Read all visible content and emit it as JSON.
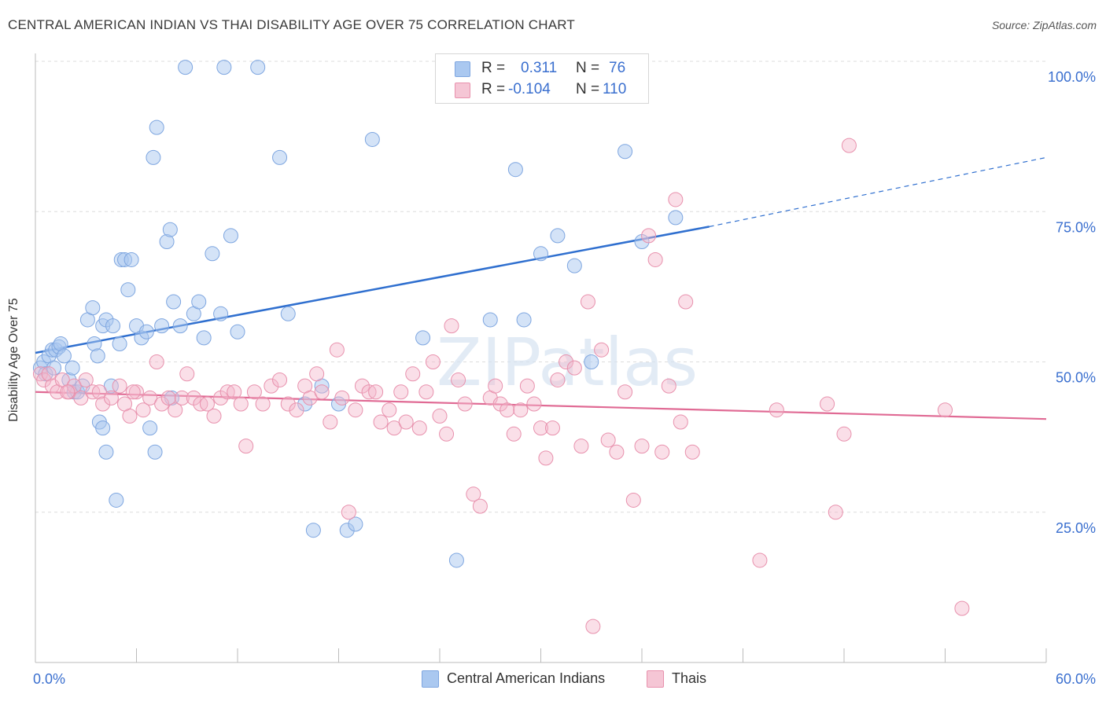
{
  "title": "CENTRAL AMERICAN INDIAN VS THAI DISABILITY AGE OVER 75 CORRELATION CHART",
  "source": "Source: ZipAtlas.com",
  "watermark": "ZIPatlas",
  "stats": [
    {
      "r_label": "R =",
      "r_value": "0.311",
      "n_label": "N =",
      "n_value": "76"
    },
    {
      "r_label": "R =",
      "r_value": "-0.104",
      "n_label": "N =",
      "n_value": "110"
    }
  ],
  "legend": [
    "Central American Indians",
    "Thais"
  ],
  "colors": {
    "blue_fill": "#aac8f0",
    "blue_stroke": "#7ea6e0",
    "blue_line": "#2f6fcf",
    "pink_fill": "#f5b8cb",
    "pink_stroke": "#e891ad",
    "pink_line": "#e06a94",
    "tick_label": "#3a6fcf",
    "grid": "#dcdcdc"
  },
  "chart_data": {
    "type": "scatter",
    "title": "CENTRAL AMERICAN INDIAN VS THAI DISABILITY AGE OVER 75 CORRELATION CHART",
    "xlabel": "",
    "ylabel": "Disability Age Over 75",
    "xlim": [
      0,
      60
    ],
    "ylim": [
      0,
      105
    ],
    "x_tick_labels": [
      "0.0%",
      "60.0%"
    ],
    "y_ticks": [
      25,
      50,
      75,
      100
    ],
    "y_tick_labels": [
      "25.0%",
      "50.0%",
      "75.0%",
      "100.0%"
    ],
    "grid": true,
    "series": [
      {
        "name": "Central American Indians",
        "trend": {
          "x0": 0,
          "y0": 51.5,
          "x1": 40,
          "y1": 72.5,
          "dash_to_x": 60,
          "dash_to_y": 84
        },
        "points": [
          [
            0.3,
            49
          ],
          [
            0.5,
            50
          ],
          [
            0.6,
            48
          ],
          [
            0.8,
            51
          ],
          [
            1,
            52
          ],
          [
            1.1,
            49
          ],
          [
            1.2,
            52
          ],
          [
            1.4,
            52.5
          ],
          [
            1.5,
            53
          ],
          [
            1.7,
            51
          ],
          [
            2,
            47
          ],
          [
            2.3,
            45
          ],
          [
            2.5,
            45
          ],
          [
            2.8,
            46
          ],
          [
            3.1,
            57
          ],
          [
            3.4,
            59
          ],
          [
            3.5,
            53
          ],
          [
            3.7,
            51
          ],
          [
            4,
            56
          ],
          [
            4.2,
            57
          ],
          [
            4.5,
            46
          ],
          [
            4.6,
            56
          ],
          [
            5,
            53
          ],
          [
            5.1,
            67
          ],
          [
            5.3,
            67
          ],
          [
            5.5,
            62
          ],
          [
            5.7,
            67
          ],
          [
            6,
            56
          ],
          [
            6.3,
            54
          ],
          [
            6.6,
            55
          ],
          [
            7,
            84
          ],
          [
            7.2,
            89
          ],
          [
            7.5,
            56
          ],
          [
            7.8,
            70
          ],
          [
            8,
            72
          ],
          [
            8.2,
            60
          ],
          [
            8.6,
            56
          ],
          [
            8.9,
            99
          ],
          [
            9.4,
            58
          ],
          [
            9.7,
            60
          ],
          [
            10,
            54
          ],
          [
            10.5,
            68
          ],
          [
            11,
            58
          ],
          [
            11.2,
            99
          ],
          [
            11.6,
            71
          ],
          [
            12,
            55
          ],
          [
            13.2,
            99
          ],
          [
            14.5,
            84
          ],
          [
            15,
            58
          ],
          [
            16,
            43
          ],
          [
            16.5,
            22
          ],
          [
            17,
            46
          ],
          [
            18,
            43
          ],
          [
            18.5,
            22
          ],
          [
            19,
            23
          ],
          [
            20,
            87
          ],
          [
            23,
            54
          ],
          [
            25,
            17
          ],
          [
            27,
            57
          ],
          [
            28.5,
            82
          ],
          [
            29,
            57
          ],
          [
            30,
            68
          ],
          [
            31,
            71
          ],
          [
            32,
            66
          ],
          [
            33,
            50
          ],
          [
            35,
            85
          ],
          [
            36,
            70
          ],
          [
            38,
            74
          ],
          [
            3.8,
            40
          ],
          [
            4,
            39
          ],
          [
            4.2,
            35
          ],
          [
            4.8,
            27
          ],
          [
            6.8,
            39
          ],
          [
            7.1,
            35
          ],
          [
            8.1,
            44
          ],
          [
            2.2,
            49
          ]
        ]
      },
      {
        "name": "Thais",
        "trend": {
          "x0": 0,
          "y0": 45,
          "x1": 60,
          "y1": 40.5
        },
        "points": [
          [
            0.3,
            48
          ],
          [
            0.5,
            47
          ],
          [
            0.8,
            48
          ],
          [
            1,
            46
          ],
          [
            1.3,
            45
          ],
          [
            1.6,
            47
          ],
          [
            2,
            45
          ],
          [
            2.3,
            46
          ],
          [
            2.7,
            44
          ],
          [
            3,
            47
          ],
          [
            3.4,
            45
          ],
          [
            3.8,
            45
          ],
          [
            4,
            43
          ],
          [
            4.5,
            44
          ],
          [
            5,
            46
          ],
          [
            5.3,
            43
          ],
          [
            5.6,
            41
          ],
          [
            6,
            45
          ],
          [
            6.4,
            42
          ],
          [
            6.8,
            44
          ],
          [
            7.2,
            50
          ],
          [
            7.5,
            43
          ],
          [
            7.9,
            44
          ],
          [
            8.3,
            42
          ],
          [
            8.7,
            44
          ],
          [
            9,
            48
          ],
          [
            9.4,
            44
          ],
          [
            9.8,
            43
          ],
          [
            10.2,
            43
          ],
          [
            10.6,
            41
          ],
          [
            11,
            44
          ],
          [
            11.4,
            45
          ],
          [
            11.8,
            45
          ],
          [
            12.2,
            43
          ],
          [
            12.5,
            36
          ],
          [
            13,
            45
          ],
          [
            13.5,
            43
          ],
          [
            14,
            46
          ],
          [
            14.5,
            47
          ],
          [
            15,
            43
          ],
          [
            15.5,
            42
          ],
          [
            16,
            46
          ],
          [
            16.3,
            44
          ],
          [
            16.7,
            48
          ],
          [
            17,
            45
          ],
          [
            17.5,
            40
          ],
          [
            17.9,
            52
          ],
          [
            18.2,
            44
          ],
          [
            18.6,
            25
          ],
          [
            19,
            42
          ],
          [
            19.4,
            46
          ],
          [
            19.8,
            45
          ],
          [
            20.2,
            45
          ],
          [
            20.5,
            40
          ],
          [
            21,
            42
          ],
          [
            21.3,
            39
          ],
          [
            21.7,
            45
          ],
          [
            22,
            40
          ],
          [
            22.4,
            48
          ],
          [
            22.8,
            39
          ],
          [
            23.2,
            45
          ],
          [
            23.6,
            50
          ],
          [
            24,
            41
          ],
          [
            24.4,
            38
          ],
          [
            24.7,
            56
          ],
          [
            25.1,
            47
          ],
          [
            25.5,
            43
          ],
          [
            26,
            28
          ],
          [
            26.4,
            26
          ],
          [
            27,
            44
          ],
          [
            27.3,
            46
          ],
          [
            27.6,
            43
          ],
          [
            28,
            42
          ],
          [
            28.4,
            38
          ],
          [
            28.8,
            42
          ],
          [
            29.2,
            46
          ],
          [
            29.6,
            43
          ],
          [
            30,
            39
          ],
          [
            30.3,
            34
          ],
          [
            30.7,
            39
          ],
          [
            31,
            47
          ],
          [
            31.5,
            50
          ],
          [
            32,
            49
          ],
          [
            32.4,
            36
          ],
          [
            32.8,
            60
          ],
          [
            33.1,
            6
          ],
          [
            33.6,
            52
          ],
          [
            34,
            37
          ],
          [
            34.5,
            35
          ],
          [
            35,
            45
          ],
          [
            35.5,
            27
          ],
          [
            36,
            36
          ],
          [
            36.4,
            71
          ],
          [
            36.8,
            67
          ],
          [
            37.2,
            35
          ],
          [
            37.6,
            46
          ],
          [
            38,
            77
          ],
          [
            38.3,
            40
          ],
          [
            38.6,
            60
          ],
          [
            39,
            35
          ],
          [
            43,
            17
          ],
          [
            44,
            42
          ],
          [
            47,
            43
          ],
          [
            47.5,
            25
          ],
          [
            48,
            38
          ],
          [
            48.3,
            86
          ],
          [
            54,
            42
          ],
          [
            55,
            9
          ],
          [
            1.9,
            45
          ],
          [
            5.8,
            45
          ]
        ]
      }
    ]
  }
}
